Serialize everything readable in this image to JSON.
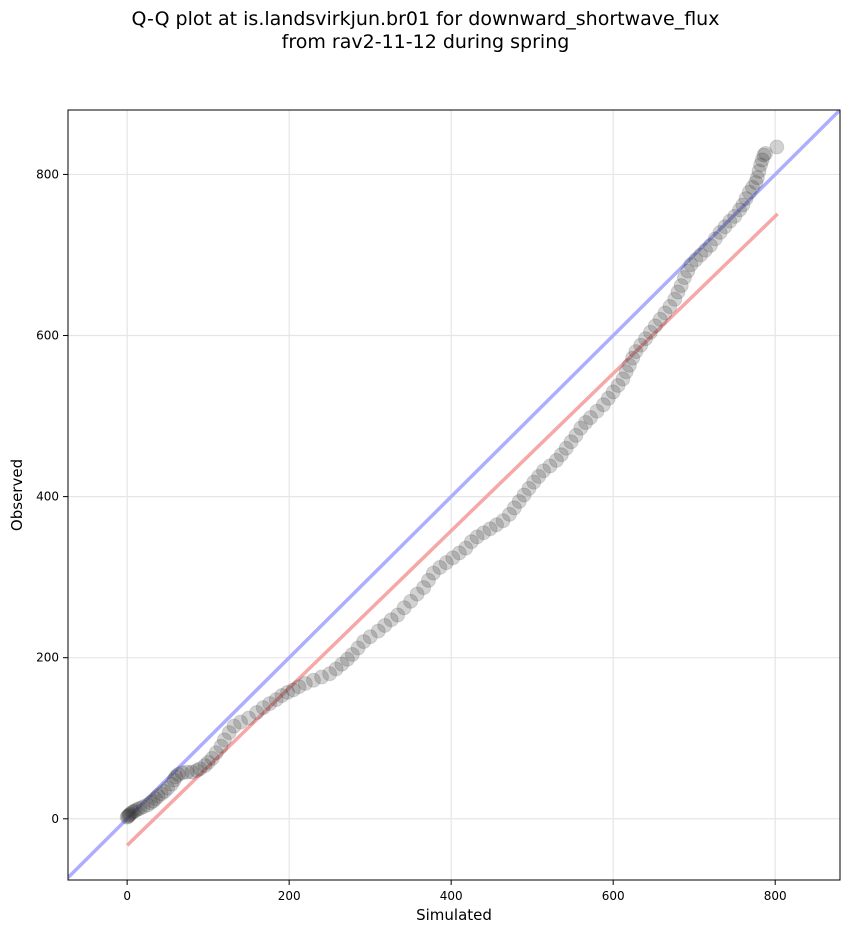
{
  "chart_data": {
    "type": "scatter",
    "title_lines": [
      "Q-Q plot at is.landsvirkjun.br01 for downward_shortwave_flux",
      "from rav2-11-12 during spring"
    ],
    "xlabel": "Simulated",
    "ylabel": "Observed",
    "xlim": [
      -73,
      880
    ],
    "ylim": [
      -76,
      880
    ],
    "xticks": [
      0,
      200,
      400,
      600,
      800
    ],
    "yticks": [
      0,
      200,
      400,
      600,
      800
    ],
    "xtick_labels": [
      "0",
      "200",
      "400",
      "600",
      "800"
    ],
    "ytick_labels": [
      "0",
      "200",
      "400",
      "600",
      "800"
    ],
    "grid": true,
    "reference_line": {
      "name": "1:1 line",
      "color": "#aaaaff",
      "x": [
        -73,
        880
      ],
      "y": [
        -73,
        880
      ]
    },
    "fit_line": {
      "name": "linear fit",
      "color": "#f5a3a3",
      "x": [
        0,
        803
      ],
      "y": [
        -33,
        751
      ]
    },
    "points_color": "#333333",
    "points": [
      [
        0,
        2
      ],
      [
        1,
        3
      ],
      [
        2,
        4
      ],
      [
        3,
        5
      ],
      [
        4,
        6
      ],
      [
        6,
        8
      ],
      [
        8,
        9
      ],
      [
        10,
        10
      ],
      [
        13,
        12
      ],
      [
        16,
        13
      ],
      [
        20,
        15
      ],
      [
        25,
        17
      ],
      [
        29,
        20
      ],
      [
        32,
        22
      ],
      [
        35,
        25
      ],
      [
        38,
        28
      ],
      [
        42,
        31
      ],
      [
        46,
        34
      ],
      [
        50,
        38
      ],
      [
        55,
        43
      ],
      [
        58,
        48
      ],
      [
        60,
        52
      ],
      [
        63,
        55
      ],
      [
        68,
        57
      ],
      [
        74,
        58
      ],
      [
        80,
        58
      ],
      [
        86,
        60
      ],
      [
        90,
        62
      ],
      [
        96,
        66
      ],
      [
        100,
        70
      ],
      [
        105,
        75
      ],
      [
        110,
        82
      ],
      [
        116,
        90
      ],
      [
        120,
        98
      ],
      [
        126,
        107
      ],
      [
        132,
        115
      ],
      [
        140,
        120
      ],
      [
        150,
        125
      ],
      [
        160,
        132
      ],
      [
        168,
        138
      ],
      [
        176,
        143
      ],
      [
        184,
        148
      ],
      [
        191,
        153
      ],
      [
        198,
        157
      ],
      [
        205,
        160
      ],
      [
        212,
        164
      ],
      [
        220,
        168
      ],
      [
        230,
        172
      ],
      [
        240,
        176
      ],
      [
        250,
        180
      ],
      [
        258,
        186
      ],
      [
        265,
        192
      ],
      [
        272,
        198
      ],
      [
        278,
        204
      ],
      [
        285,
        212
      ],
      [
        292,
        220
      ],
      [
        300,
        226
      ],
      [
        310,
        233
      ],
      [
        318,
        240
      ],
      [
        326,
        247
      ],
      [
        334,
        253
      ],
      [
        342,
        262
      ],
      [
        350,
        270
      ],
      [
        358,
        279
      ],
      [
        366,
        287
      ],
      [
        372,
        296
      ],
      [
        378,
        305
      ],
      [
        386,
        312
      ],
      [
        394,
        318
      ],
      [
        402,
        324
      ],
      [
        410,
        330
      ],
      [
        418,
        336
      ],
      [
        425,
        344
      ],
      [
        432,
        350
      ],
      [
        440,
        355
      ],
      [
        448,
        360
      ],
      [
        456,
        365
      ],
      [
        464,
        370
      ],
      [
        472,
        378
      ],
      [
        478,
        386
      ],
      [
        484,
        394
      ],
      [
        490,
        402
      ],
      [
        496,
        410
      ],
      [
        502,
        418
      ],
      [
        508,
        425
      ],
      [
        514,
        432
      ],
      [
        522,
        438
      ],
      [
        530,
        445
      ],
      [
        536,
        452
      ],
      [
        542,
        460
      ],
      [
        548,
        468
      ],
      [
        554,
        476
      ],
      [
        560,
        485
      ],
      [
        566,
        492
      ],
      [
        572,
        498
      ],
      [
        580,
        506
      ],
      [
        588,
        514
      ],
      [
        594,
        522
      ],
      [
        600,
        530
      ],
      [
        606,
        538
      ],
      [
        612,
        546
      ],
      [
        616,
        555
      ],
      [
        620,
        563
      ],
      [
        624,
        572
      ],
      [
        628,
        580
      ],
      [
        634,
        588
      ],
      [
        640,
        596
      ],
      [
        646,
        604
      ],
      [
        652,
        612
      ],
      [
        658,
        620
      ],
      [
        664,
        628
      ],
      [
        670,
        636
      ],
      [
        676,
        645
      ],
      [
        680,
        654
      ],
      [
        684,
        662
      ],
      [
        688,
        672
      ],
      [
        692,
        680
      ],
      [
        696,
        688
      ],
      [
        702,
        694
      ],
      [
        708,
        700
      ],
      [
        714,
        706
      ],
      [
        720,
        712
      ],
      [
        726,
        720
      ],
      [
        732,
        728
      ],
      [
        738,
        735
      ],
      [
        744,
        742
      ],
      [
        750,
        748
      ],
      [
        756,
        756
      ],
      [
        760,
        762
      ],
      [
        764,
        770
      ],
      [
        768,
        778
      ],
      [
        772,
        784
      ],
      [
        776,
        790
      ],
      [
        778,
        796
      ],
      [
        780,
        804
      ],
      [
        782,
        812
      ],
      [
        784,
        818
      ],
      [
        786,
        824
      ],
      [
        788,
        826
      ],
      [
        802,
        834
      ]
    ]
  }
}
